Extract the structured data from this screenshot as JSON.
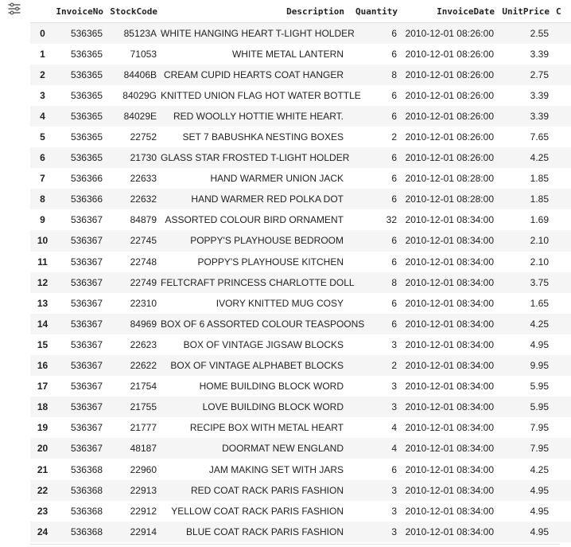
{
  "toolbar": {
    "toggle_icon": "filter-list-toggle-icon"
  },
  "table": {
    "columns": [
      "InvoiceNo",
      "StockCode",
      "Description",
      "Quantity",
      "InvoiceDate",
      "UnitPrice",
      "C"
    ],
    "rows": [
      [
        "0",
        "536365",
        "85123A",
        "WHITE HANGING HEART T-LIGHT HOLDER",
        "6",
        "2010-12-01 08:26:00",
        "2.55"
      ],
      [
        "1",
        "536365",
        "71053",
        "WHITE METAL LANTERN",
        "6",
        "2010-12-01 08:26:00",
        "3.39"
      ],
      [
        "2",
        "536365",
        "84406B",
        "CREAM CUPID HEARTS COAT HANGER",
        "8",
        "2010-12-01 08:26:00",
        "2.75"
      ],
      [
        "3",
        "536365",
        "84029G",
        "KNITTED UNION FLAG HOT WATER BOTTLE",
        "6",
        "2010-12-01 08:26:00",
        "3.39"
      ],
      [
        "4",
        "536365",
        "84029E",
        "RED WOOLLY HOTTIE WHITE HEART.",
        "6",
        "2010-12-01 08:26:00",
        "3.39"
      ],
      [
        "5",
        "536365",
        "22752",
        "SET 7 BABUSHKA NESTING BOXES",
        "2",
        "2010-12-01 08:26:00",
        "7.65"
      ],
      [
        "6",
        "536365",
        "21730",
        "GLASS STAR FROSTED T-LIGHT HOLDER",
        "6",
        "2010-12-01 08:26:00",
        "4.25"
      ],
      [
        "7",
        "536366",
        "22633",
        "HAND WARMER UNION JACK",
        "6",
        "2010-12-01 08:28:00",
        "1.85"
      ],
      [
        "8",
        "536366",
        "22632",
        "HAND WARMER RED POLKA DOT",
        "6",
        "2010-12-01 08:28:00",
        "1.85"
      ],
      [
        "9",
        "536367",
        "84879",
        "ASSORTED COLOUR BIRD ORNAMENT",
        "32",
        "2010-12-01 08:34:00",
        "1.69"
      ],
      [
        "10",
        "536367",
        "22745",
        "POPPY'S PLAYHOUSE BEDROOM",
        "6",
        "2010-12-01 08:34:00",
        "2.10"
      ],
      [
        "11",
        "536367",
        "22748",
        "POPPY'S PLAYHOUSE KITCHEN",
        "6",
        "2010-12-01 08:34:00",
        "2.10"
      ],
      [
        "12",
        "536367",
        "22749",
        "FELTCRAFT PRINCESS CHARLOTTE DOLL",
        "8",
        "2010-12-01 08:34:00",
        "3.75"
      ],
      [
        "13",
        "536367",
        "22310",
        "IVORY KNITTED MUG COSY",
        "6",
        "2010-12-01 08:34:00",
        "1.65"
      ],
      [
        "14",
        "536367",
        "84969",
        "BOX OF 6 ASSORTED COLOUR TEASPOONS",
        "6",
        "2010-12-01 08:34:00",
        "4.25"
      ],
      [
        "15",
        "536367",
        "22623",
        "BOX OF VINTAGE JIGSAW BLOCKS",
        "3",
        "2010-12-01 08:34:00",
        "4.95"
      ],
      [
        "16",
        "536367",
        "22622",
        "BOX OF VINTAGE ALPHABET BLOCKS",
        "2",
        "2010-12-01 08:34:00",
        "9.95"
      ],
      [
        "17",
        "536367",
        "21754",
        "HOME BUILDING BLOCK WORD",
        "3",
        "2010-12-01 08:34:00",
        "5.95"
      ],
      [
        "18",
        "536367",
        "21755",
        "LOVE BUILDING BLOCK WORD",
        "3",
        "2010-12-01 08:34:00",
        "5.95"
      ],
      [
        "19",
        "536367",
        "21777",
        "RECIPE BOX WITH METAL HEART",
        "4",
        "2010-12-01 08:34:00",
        "7.95"
      ],
      [
        "20",
        "536367",
        "48187",
        "DOORMAT NEW ENGLAND",
        "4",
        "2010-12-01 08:34:00",
        "7.95"
      ],
      [
        "21",
        "536368",
        "22960",
        "JAM MAKING SET WITH JARS",
        "6",
        "2010-12-01 08:34:00",
        "4.25"
      ],
      [
        "22",
        "536368",
        "22913",
        "RED COAT RACK PARIS FASHION",
        "3",
        "2010-12-01 08:34:00",
        "4.95"
      ],
      [
        "23",
        "536368",
        "22912",
        "YELLOW COAT RACK PARIS FASHION",
        "3",
        "2010-12-01 08:34:00",
        "4.95"
      ],
      [
        "24",
        "536368",
        "22914",
        "BLUE COAT RACK PARIS FASHION",
        "3",
        "2010-12-01 08:34:00",
        "4.95"
      ]
    ]
  },
  "colors": {
    "odd_row": "#f5f5f5",
    "even_row": "#ffffff",
    "header_border": "#e0e0e0",
    "text": "#212121",
    "icon": "#616161"
  }
}
